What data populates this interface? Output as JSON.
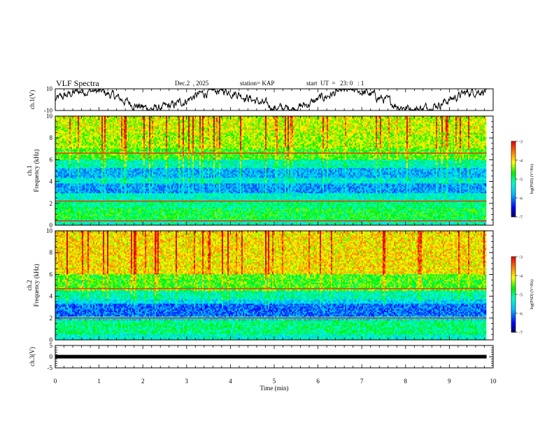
{
  "header": {
    "title": "VLF Spectra",
    "date": "Dec.2  , 2025",
    "station": "station= KAP",
    "start_ut": "start  UT  =   23: 0   : 1"
  },
  "chart_data": [
    {
      "type": "line",
      "name": "ch1-voltage",
      "ylabel": "ch.1(V)",
      "ylim": [
        -10,
        10
      ],
      "yticks": [
        10,
        -10
      ],
      "x_range_min": [
        0,
        9.85
      ],
      "description_values": "noisy waveform oscillating roughly between -8 and +8 V"
    },
    {
      "type": "heatmap",
      "name": "ch1-spectrogram",
      "ylabel": "ch.1\nFrequency  (kHz)",
      "ylim": [
        0,
        10
      ],
      "yticks": [
        "0",
        "2",
        "4",
        "6",
        "8",
        "10"
      ],
      "x_range_min": [
        0,
        9.85
      ],
      "bands": [
        {
          "from": 0.0,
          "to": 0.5,
          "level": -5.2
        },
        {
          "from": 0.5,
          "to": 1.5,
          "level": -4.8
        },
        {
          "from": 1.5,
          "to": 2.3,
          "level": -5.0
        },
        {
          "from": 2.3,
          "to": 3.0,
          "level": -5.3
        },
        {
          "from": 3.0,
          "to": 3.8,
          "level": -5.9
        },
        {
          "from": 3.8,
          "to": 4.3,
          "level": -5.4
        },
        {
          "from": 4.3,
          "to": 5.2,
          "level": -5.8
        },
        {
          "from": 5.2,
          "to": 6.0,
          "level": -5.2
        },
        {
          "from": 6.0,
          "to": 7.0,
          "level": -4.6
        },
        {
          "from": 7.0,
          "to": 8.5,
          "level": -4.3
        },
        {
          "from": 8.5,
          "to": 10.0,
          "level": -4.2
        }
      ],
      "lines_khz": [
        6.6,
        2.2,
        0.4
      ]
    },
    {
      "type": "heatmap",
      "name": "ch2-spectrogram",
      "ylabel": "ch.2\nFrequency  (kHz)",
      "ylim": [
        0,
        10
      ],
      "yticks": [
        "0",
        "2",
        "4",
        "6",
        "8",
        "10"
      ],
      "x_range_min": [
        0,
        9.85
      ],
      "bands": [
        {
          "from": 0.0,
          "to": 0.5,
          "level": -5.3
        },
        {
          "from": 0.5,
          "to": 1.8,
          "level": -5.0
        },
        {
          "from": 1.8,
          "to": 2.2,
          "level": -5.6
        },
        {
          "from": 2.2,
          "to": 3.3,
          "level": -6.1
        },
        {
          "from": 3.3,
          "to": 3.7,
          "level": -5.6
        },
        {
          "from": 3.7,
          "to": 4.5,
          "level": -5.2
        },
        {
          "from": 4.5,
          "to": 6.0,
          "level": -4.6
        },
        {
          "from": 6.0,
          "to": 10.0,
          "level": -4.0
        }
      ],
      "lines_khz": [
        4.7,
        2.0
      ]
    },
    {
      "type": "line",
      "name": "ch3-voltage",
      "ylabel": "ch.3(V)",
      "ylim": [
        -5,
        5
      ],
      "yticks": [
        "5",
        "0",
        "-5"
      ],
      "x_range_min": [
        0,
        9.85
      ],
      "level_band": [
        -0.8,
        0.8
      ]
    }
  ],
  "xaxis": {
    "label": "Time  (min)",
    "ticks": [
      "0",
      "1",
      "2",
      "3",
      "4",
      "5",
      "6",
      "7",
      "8",
      "9",
      "10"
    ],
    "xlim": [
      0,
      10
    ]
  },
  "colorbar": {
    "label": "log(PSD) (V²/Hz)",
    "ticks": [
      "-3",
      "-4",
      "-5",
      "-6",
      "-7"
    ],
    "range": [
      -7,
      -3
    ]
  }
}
